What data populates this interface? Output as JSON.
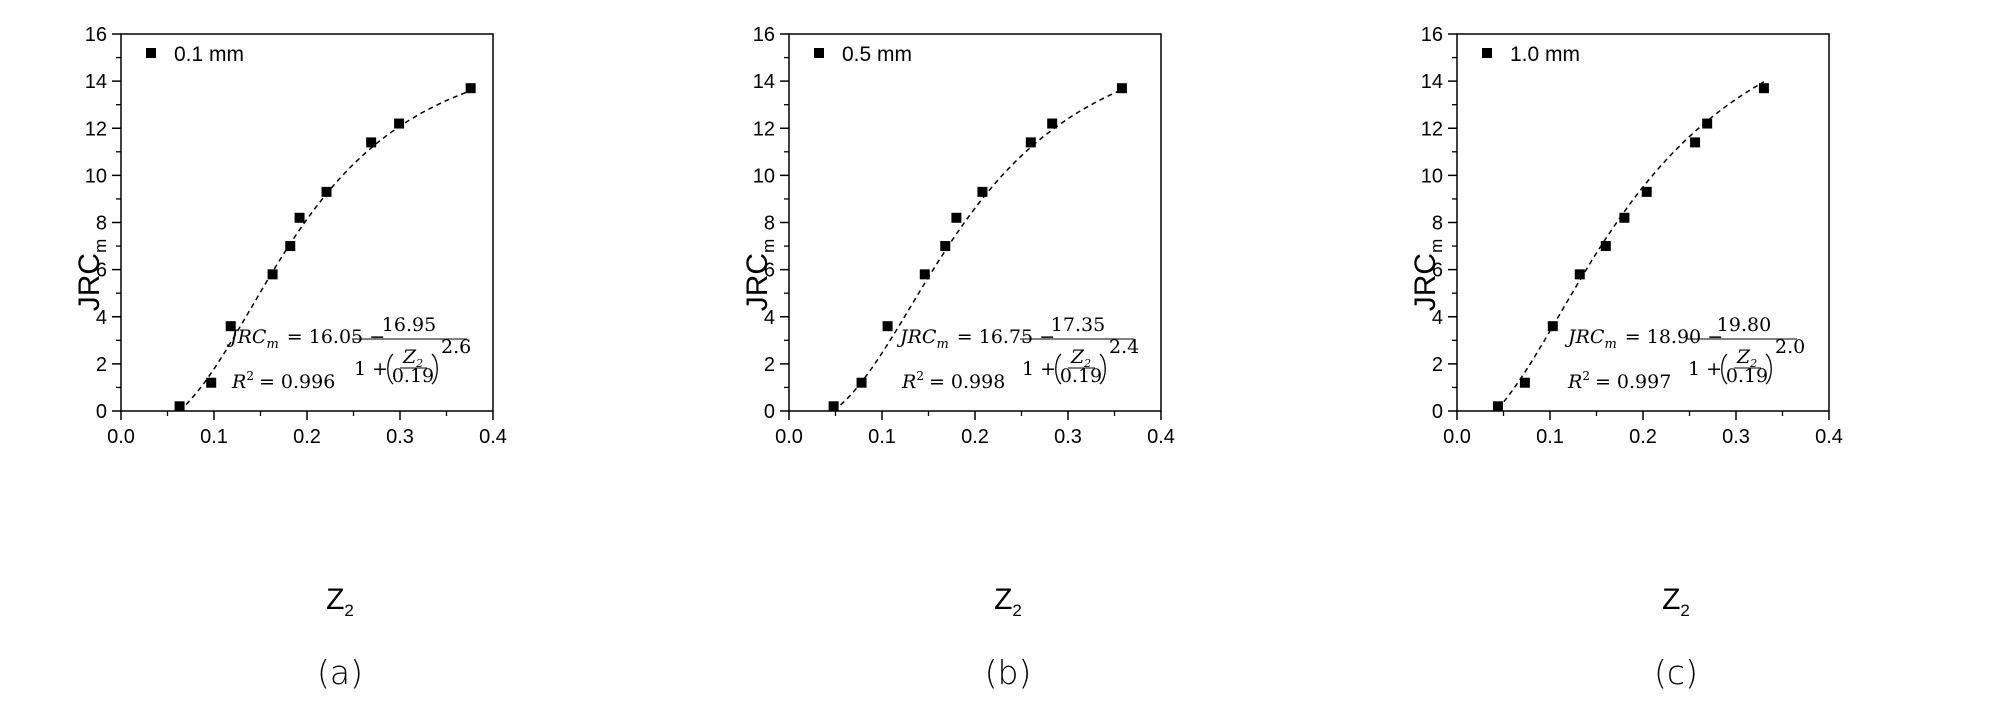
{
  "chart_data": [
    {
      "type": "scatter",
      "panel_label": "(a)",
      "legend": "0.1 mm",
      "legend_position": "top-left",
      "xlabel_main": "Z",
      "xlabel_sub": "2",
      "ylabel_main": "JRC",
      "ylabel_sub": "m",
      "xlim": [
        0.0,
        0.4
      ],
      "ylim": [
        0,
        16
      ],
      "xticks": [
        "0.0",
        "0.1",
        "0.2",
        "0.3",
        "0.4"
      ],
      "yticks": [
        "0",
        "2",
        "4",
        "6",
        "8",
        "10",
        "12",
        "14",
        "16"
      ],
      "x": [
        0.063,
        0.097,
        0.118,
        0.163,
        0.182,
        0.192,
        0.221,
        0.269,
        0.299,
        0.376
      ],
      "y": [
        0.2,
        1.2,
        3.6,
        5.8,
        7.0,
        8.2,
        9.3,
        11.4,
        12.2,
        13.7
      ],
      "fit": {
        "A": 16.05,
        "B": 16.95,
        "x0": 0.19,
        "p": 2.6,
        "x_range": [
          0.063,
          0.376
        ]
      },
      "equation": {
        "lhs": "JRC",
        "lhs_sub": "m",
        "eq_a": "= 16.05 −",
        "numerator": "16.95",
        "denom_prefix": "1 +",
        "frac_num": "Z",
        "frac_num_sub": "2",
        "frac_den": "0.19",
        "exponent": "2.6",
        "r2_label": "R",
        "r2_exp": "2",
        "r2_value": "= 0.996"
      }
    },
    {
      "type": "scatter",
      "panel_label": "(b)",
      "legend": "0.5 mm",
      "legend_position": "top-left",
      "xlabel_main": "Z",
      "xlabel_sub": "2",
      "ylabel_main": "JRC",
      "ylabel_sub": "m",
      "xlim": [
        0.0,
        0.4
      ],
      "ylim": [
        0,
        16
      ],
      "xticks": [
        "0.0",
        "0.1",
        "0.2",
        "0.3",
        "0.4"
      ],
      "yticks": [
        "0",
        "2",
        "4",
        "6",
        "8",
        "10",
        "12",
        "14",
        "16"
      ],
      "x": [
        0.048,
        0.078,
        0.106,
        0.146,
        0.168,
        0.18,
        0.208,
        0.26,
        0.283,
        0.358
      ],
      "y": [
        0.2,
        1.2,
        3.6,
        5.8,
        7.0,
        8.2,
        9.3,
        11.4,
        12.2,
        13.7
      ],
      "fit": {
        "A": 16.75,
        "B": 17.35,
        "x0": 0.19,
        "p": 2.4,
        "x_range": [
          0.048,
          0.358
        ]
      },
      "equation": {
        "lhs": "JRC",
        "lhs_sub": "m",
        "eq_a": "= 16.75 −",
        "numerator": "17.35",
        "denom_prefix": "1 +",
        "frac_num": "Z",
        "frac_num_sub": "2",
        "frac_den": "0.19",
        "exponent": "2.4",
        "r2_label": "R",
        "r2_exp": "2",
        "r2_value": "= 0.998"
      }
    },
    {
      "type": "scatter",
      "panel_label": "(c)",
      "legend": "1.0 mm",
      "legend_position": "top-left",
      "xlabel_main": "Z",
      "xlabel_sub": "2",
      "ylabel_main": "JRC",
      "ylabel_sub": "m",
      "xlim": [
        0.0,
        0.4
      ],
      "ylim": [
        0,
        16
      ],
      "xticks": [
        "0.0",
        "0.1",
        "0.2",
        "0.3",
        "0.4"
      ],
      "yticks": [
        "0",
        "2",
        "4",
        "6",
        "8",
        "10",
        "12",
        "14",
        "16"
      ],
      "x": [
        0.044,
        0.073,
        0.103,
        0.132,
        0.16,
        0.18,
        0.204,
        0.256,
        0.269,
        0.33
      ],
      "y": [
        0.2,
        1.2,
        3.6,
        5.8,
        7.0,
        8.2,
        9.3,
        11.4,
        12.2,
        13.7
      ],
      "fit": {
        "A": 18.9,
        "B": 19.8,
        "x0": 0.19,
        "p": 2.0,
        "x_range": [
          0.044,
          0.33
        ]
      },
      "equation": {
        "lhs": "JRC",
        "lhs_sub": "m",
        "eq_a": "= 18.90 −",
        "numerator": "19.80",
        "denom_prefix": "1 +",
        "frac_num": "Z",
        "frac_num_sub": "2",
        "frac_den": "0.19",
        "exponent": "2.0",
        "r2_label": "R",
        "r2_exp": "2",
        "r2_value": "= 0.997"
      }
    }
  ]
}
